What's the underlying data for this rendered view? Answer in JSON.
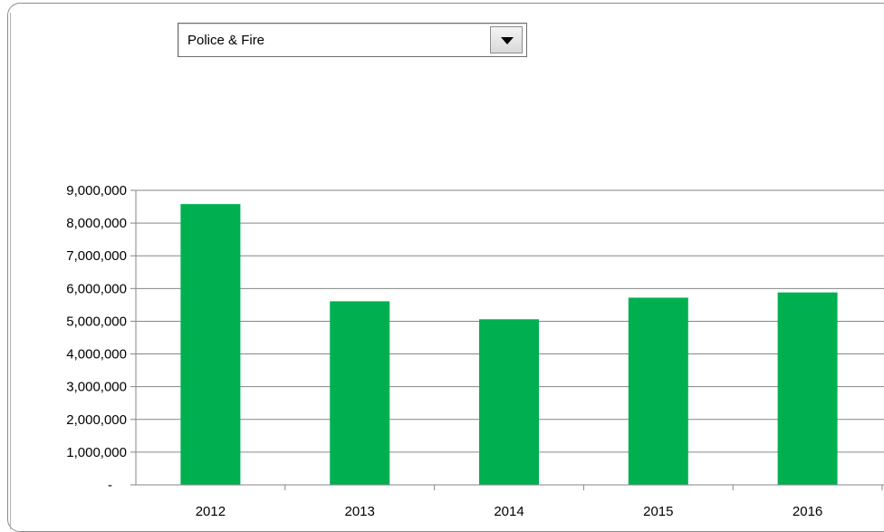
{
  "filter": {
    "selected_value": "Police & Fire",
    "icon": "dropdown-arrow-icon"
  },
  "chart_data": {
    "type": "bar",
    "categories": [
      "2012",
      "2013",
      "2014",
      "2015",
      "2016"
    ],
    "values": [
      8580000,
      5610000,
      5060000,
      5720000,
      5880000
    ],
    "ylim": [
      0,
      9000000
    ],
    "yticks": [
      0,
      1000000,
      2000000,
      3000000,
      4000000,
      5000000,
      6000000,
      7000000,
      8000000,
      9000000
    ],
    "ytick_labels": [
      "-",
      "1,000,000",
      "2,000,000",
      "3,000,000",
      "4,000,000",
      "5,000,000",
      "6,000,000",
      "7,000,000",
      "8,000,000",
      "9,000,000"
    ],
    "bar_color": "#00b050",
    "grid": true,
    "legend": "none"
  }
}
